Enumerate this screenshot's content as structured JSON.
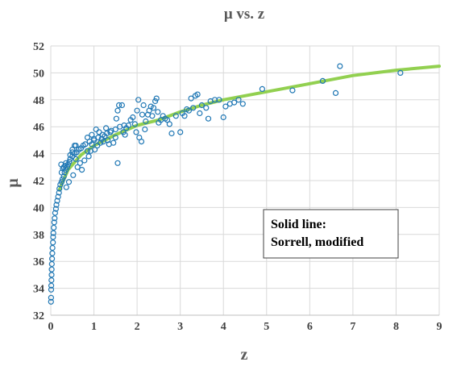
{
  "chart_data": {
    "type": "scatter",
    "title": "μ vs. z",
    "xlabel": "z",
    "ylabel": "μ",
    "xlim": [
      0,
      9
    ],
    "ylim": [
      32,
      52
    ],
    "x_ticks": [
      "0",
      "1",
      "2",
      "3",
      "4",
      "5",
      "6",
      "7",
      "8",
      "9"
    ],
    "y_ticks": [
      "32",
      "34",
      "36",
      "38",
      "40",
      "42",
      "44",
      "46",
      "48",
      "50",
      "52"
    ],
    "grid": "vertical and horizontal major gridlines",
    "annotation": {
      "line1": "Solid line:",
      "line2": "Sorrell, modified"
    },
    "series": [
      {
        "kind": "scatter",
        "color": "#1f77b4",
        "marker": "open-circle",
        "points": [
          [
            0.005,
            33.0
          ],
          [
            0.008,
            33.3
          ],
          [
            0.01,
            33.9
          ],
          [
            0.012,
            34.2
          ],
          [
            0.015,
            34.6
          ],
          [
            0.018,
            35.0
          ],
          [
            0.02,
            35.4
          ],
          [
            0.025,
            35.8
          ],
          [
            0.03,
            36.2
          ],
          [
            0.035,
            36.6
          ],
          [
            0.04,
            37.0
          ],
          [
            0.05,
            37.4
          ],
          [
            0.055,
            37.8
          ],
          [
            0.06,
            38.1
          ],
          [
            0.07,
            38.5
          ],
          [
            0.08,
            38.9
          ],
          [
            0.09,
            39.2
          ],
          [
            0.1,
            39.6
          ],
          [
            0.12,
            39.9
          ],
          [
            0.13,
            40.2
          ],
          [
            0.15,
            40.5
          ],
          [
            0.17,
            40.8
          ],
          [
            0.19,
            41.1
          ],
          [
            0.2,
            41.4
          ],
          [
            0.22,
            41.7
          ],
          [
            0.25,
            41.9
          ],
          [
            0.27,
            42.1
          ],
          [
            0.3,
            42.3
          ],
          [
            0.32,
            42.6
          ],
          [
            0.35,
            42.8
          ],
          [
            0.38,
            43.0
          ],
          [
            0.4,
            43.2
          ],
          [
            0.43,
            43.4
          ],
          [
            0.45,
            43.6
          ],
          [
            0.5,
            43.8
          ],
          [
            0.55,
            44.0
          ],
          [
            0.6,
            44.1
          ],
          [
            0.65,
            44.3
          ],
          [
            0.7,
            44.4
          ],
          [
            0.75,
            44.6
          ],
          [
            0.8,
            44.7
          ],
          [
            0.9,
            44.9
          ],
          [
            1.0,
            45.0
          ],
          [
            1.1,
            45.2
          ],
          [
            1.2,
            45.4
          ],
          [
            1.3,
            45.5
          ],
          [
            1.4,
            45.7
          ],
          [
            1.5,
            45.8
          ],
          [
            1.6,
            46.0
          ],
          [
            1.7,
            46.1
          ],
          [
            0.28,
            42.9
          ],
          [
            0.33,
            43.1
          ],
          [
            0.36,
            41.5
          ],
          [
            0.42,
            41.9
          ],
          [
            0.45,
            43.9
          ],
          [
            0.5,
            44.3
          ],
          [
            0.52,
            42.4
          ],
          [
            0.58,
            44.6
          ],
          [
            0.62,
            43.0
          ],
          [
            0.68,
            43.3
          ],
          [
            0.72,
            42.8
          ],
          [
            0.78,
            43.5
          ],
          [
            0.85,
            45.2
          ],
          [
            0.88,
            43.8
          ],
          [
            0.92,
            44.2
          ],
          [
            0.95,
            45.4
          ],
          [
            1.02,
            44.3
          ],
          [
            1.05,
            45.8
          ],
          [
            1.08,
            44.6
          ],
          [
            1.12,
            45.6
          ],
          [
            1.15,
            44.8
          ],
          [
            1.18,
            45.1
          ],
          [
            1.22,
            44.9
          ],
          [
            1.25,
            45.3
          ],
          [
            1.28,
            45.9
          ],
          [
            1.32,
            45.0
          ],
          [
            1.35,
            44.7
          ],
          [
            1.38,
            45.6
          ],
          [
            1.45,
            44.8
          ],
          [
            1.5,
            45.2
          ],
          [
            0.5,
            44.1
          ],
          [
            0.55,
            44.6
          ],
          [
            0.85,
            44.2
          ],
          [
            0.95,
            44.7
          ],
          [
            1.0,
            45.1
          ],
          [
            0.35,
            43.3
          ],
          [
            0.3,
            43.0
          ],
          [
            0.25,
            42.6
          ],
          [
            0.24,
            43.2
          ],
          [
            0.58,
            43.6
          ],
          [
            1.55,
            43.3
          ],
          [
            1.52,
            46.6
          ],
          [
            1.55,
            47.2
          ],
          [
            1.58,
            47.6
          ],
          [
            1.65,
            47.6
          ],
          [
            1.68,
            45.6
          ],
          [
            1.72,
            45.4
          ],
          [
            1.75,
            45.9
          ],
          [
            1.8,
            46.1
          ],
          [
            1.85,
            46.5
          ],
          [
            1.9,
            46.7
          ],
          [
            1.95,
            46.2
          ],
          [
            2.0,
            47.2
          ],
          [
            2.05,
            45.2
          ],
          [
            2.1,
            44.9
          ],
          [
            2.12,
            46.9
          ],
          [
            2.15,
            47.6
          ],
          [
            2.18,
            45.8
          ],
          [
            2.2,
            46.4
          ],
          [
            2.25,
            46.9
          ],
          [
            2.28,
            47.2
          ],
          [
            2.32,
            47.5
          ],
          [
            2.35,
            46.8
          ],
          [
            2.38,
            47.4
          ],
          [
            2.42,
            47.9
          ],
          [
            2.45,
            48.1
          ],
          [
            2.48,
            47.1
          ],
          [
            2.5,
            46.3
          ],
          [
            2.55,
            46.5
          ],
          [
            2.6,
            46.8
          ],
          [
            2.65,
            46.6
          ],
          [
            2.7,
            46.5
          ],
          [
            2.75,
            46.2
          ],
          [
            2.8,
            45.5
          ],
          [
            2.9,
            46.8
          ],
          [
            3.0,
            45.6
          ],
          [
            3.05,
            47.0
          ],
          [
            3.1,
            46.8
          ],
          [
            3.15,
            47.3
          ],
          [
            3.2,
            47.2
          ],
          [
            3.25,
            48.1
          ],
          [
            3.3,
            47.4
          ],
          [
            3.35,
            48.3
          ],
          [
            3.4,
            48.4
          ],
          [
            3.45,
            47.0
          ],
          [
            3.5,
            47.6
          ],
          [
            3.6,
            47.4
          ],
          [
            3.65,
            46.6
          ],
          [
            3.7,
            47.9
          ],
          [
            3.8,
            48.0
          ],
          [
            3.9,
            48.0
          ],
          [
            4.0,
            46.7
          ],
          [
            4.05,
            47.5
          ],
          [
            4.15,
            47.7
          ],
          [
            4.25,
            47.8
          ],
          [
            4.35,
            48.0
          ],
          [
            4.45,
            47.7
          ],
          [
            4.9,
            48.8
          ],
          [
            5.6,
            48.7
          ],
          [
            6.3,
            49.4
          ],
          [
            6.6,
            48.5
          ],
          [
            6.7,
            50.5
          ],
          [
            8.1,
            50.0
          ],
          [
            2.03,
            48.0
          ],
          [
            1.98,
            45.6
          ]
        ]
      },
      {
        "kind": "line",
        "name": "Sorrell, modified",
        "color": "#92d050",
        "points": [
          [
            0.2,
            41.3
          ],
          [
            0.4,
            42.8
          ],
          [
            0.7,
            43.9
          ],
          [
            1.0,
            44.6
          ],
          [
            1.5,
            45.4
          ],
          [
            2.0,
            46.1
          ],
          [
            2.5,
            46.5
          ],
          [
            3.0,
            47.1
          ],
          [
            3.5,
            47.6
          ],
          [
            4.0,
            48.0
          ],
          [
            5.0,
            48.6
          ],
          [
            6.0,
            49.2
          ],
          [
            7.0,
            49.8
          ],
          [
            8.0,
            50.2
          ],
          [
            9.0,
            50.5
          ]
        ]
      }
    ]
  }
}
